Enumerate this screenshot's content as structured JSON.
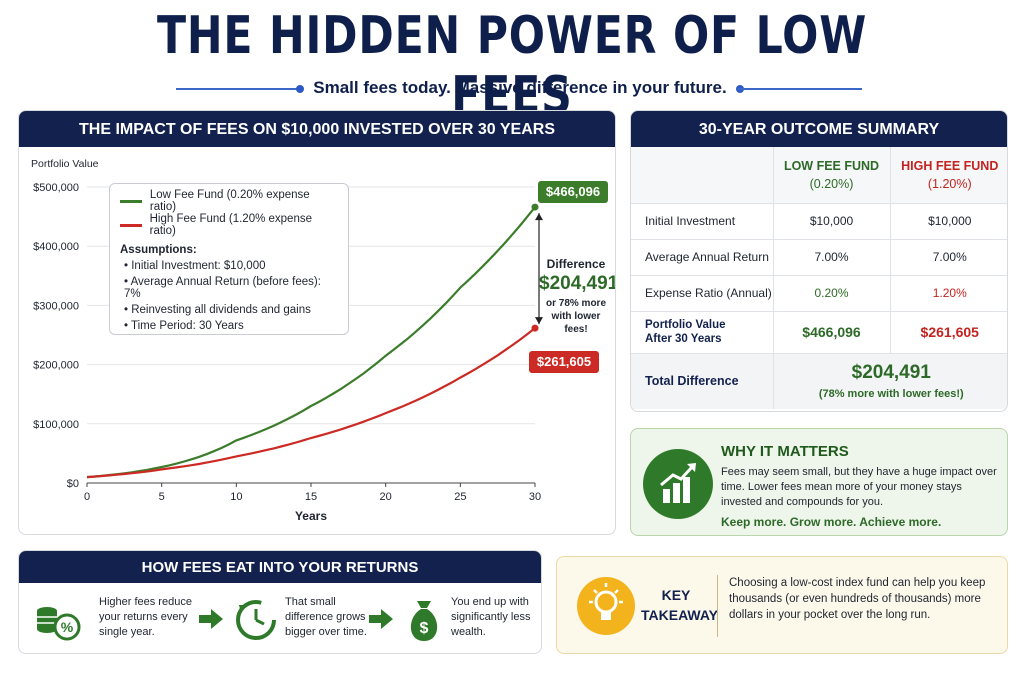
{
  "title": "THE HIDDEN POWER OF LOW FEES",
  "subtitle": "Small fees today. Massive difference in your future.",
  "colors": {
    "navy": "#12214e",
    "green": "#2d6a27",
    "red": "#c4231f",
    "blue": "#2c5bc4",
    "gold": "#f2b31c"
  },
  "chart_panel": {
    "header": "THE IMPACT OF FEES ON $10,000 INVESTED OVER 30 YEARS",
    "callouts": {
      "low": "$466,096",
      "high": "$261,605"
    },
    "difference": {
      "word": "Difference",
      "value": "$204,491",
      "note": "or 78% more with lower fees!"
    },
    "legend": {
      "low_label": "Low Fee Fund (0.20% expense ratio)",
      "high_label": "High Fee Fund (1.20% expense ratio)",
      "assumptions_title": "Assumptions:",
      "assumptions": [
        "Initial Investment: $10,000",
        "Average Annual Return (before fees): 7%",
        "Reinvesting all dividends and gains",
        "Time Period: 30 Years"
      ]
    }
  },
  "chart_data": {
    "type": "line",
    "title": "THE IMPACT OF FEES ON $10,000 INVESTED OVER 30 YEARS",
    "xlabel": "Years",
    "ylabel": "Portfolio Value",
    "xlim": [
      0,
      30
    ],
    "ylim": [
      0,
      500000
    ],
    "x_ticks": [
      0,
      5,
      10,
      15,
      20,
      25,
      30
    ],
    "y_ticks": [
      0,
      100000,
      200000,
      300000,
      400000,
      500000
    ],
    "y_tick_labels": [
      "$0",
      "$100,000",
      "$200,000",
      "$300,000",
      "$400,000",
      "$500,000"
    ],
    "grid": true,
    "legend_position": "top-left",
    "x": [
      0,
      5,
      10,
      15,
      20,
      25,
      30
    ],
    "series": [
      {
        "name": "Low Fee Fund (0.20% expense ratio)",
        "color": "#3b7d2b",
        "values": [
          10000,
          27000,
          72000,
          130000,
          215000,
          330000,
          466096
        ]
      },
      {
        "name": "High Fee Fund (1.20% expense ratio)",
        "color": "#cc2a24",
        "values": [
          10000,
          23000,
          45000,
          76000,
          118000,
          178000,
          261605
        ]
      }
    ]
  },
  "summary": {
    "header": "30-YEAR OUTCOME SUMMARY",
    "col_low": [
      "LOW FEE FUND",
      "(0.20%)"
    ],
    "col_high": [
      "HIGH FEE FUND",
      "(1.20%)"
    ],
    "rows": [
      {
        "label": "Initial Investment",
        "low": "$10,000",
        "high": "$10,000"
      },
      {
        "label": "Average Annual Return",
        "low": "7.00%",
        "high": "7.00%"
      },
      {
        "label": "Expense Ratio (Annual)",
        "low": "0.20%",
        "high": "1.20%"
      }
    ],
    "pv_label": [
      "Portfolio Value",
      "After 30 Years"
    ],
    "pv_low": "$466,096",
    "pv_high": "$261,605",
    "total_label": "Total Difference",
    "total_value": "$204,491",
    "total_note": "(78% more with lower fees!)"
  },
  "why": {
    "title": "WHY IT MATTERS",
    "body": "Fees may seem small, but they have a huge impact over time. Lower fees mean more of your money stays invested and compounds for you.",
    "tagline": "Keep more. Grow more. Achieve more."
  },
  "how": {
    "header": "HOW FEES EAT INTO YOUR RETURNS",
    "steps": [
      "Higher fees reduce your returns every single year.",
      "That small difference grows bigger over time.",
      "You end up with significantly less wealth."
    ]
  },
  "key": {
    "title_1": "KEY",
    "title_2": "TAKEAWAY",
    "body": "Choosing a low-cost index fund can help you keep thousands (or even hundreds of thousands) more dollars in your pocket over the long run."
  }
}
